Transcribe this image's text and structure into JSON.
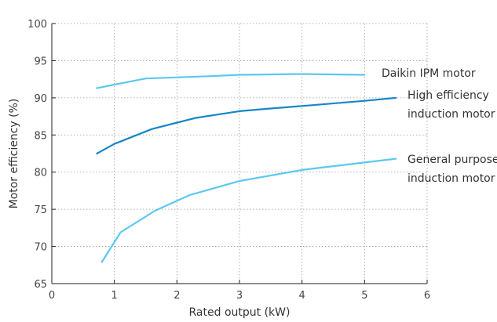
{
  "chart_data": {
    "type": "line",
    "title": "",
    "xlabel": "Rated output (kW)",
    "ylabel": "Motor efficiency (%)",
    "xlim": [
      0,
      6
    ],
    "ylim": [
      65,
      100
    ],
    "x_ticks": [
      "0",
      "1",
      "2",
      "3",
      "4",
      "5",
      "6"
    ],
    "y_ticks": [
      "65",
      "70",
      "75",
      "80",
      "85",
      "90",
      "95",
      "100"
    ],
    "grid": "dotted",
    "legend": "inline labels at line ends",
    "series": [
      {
        "name": "Daikin IPM motor",
        "color": "#5bc8ee",
        "x": [
          0.72,
          1.5,
          2.5,
          3.0,
          4.0,
          5.0
        ],
        "y": [
          91.3,
          92.6,
          92.9,
          93.1,
          93.2,
          93.1
        ]
      },
      {
        "name": "High efficiency induction motor",
        "color": "#1886c8",
        "x": [
          0.72,
          1.0,
          1.6,
          2.3,
          3.0,
          3.4,
          4.0,
          5.0,
          5.5
        ],
        "y": [
          82.5,
          83.8,
          85.8,
          87.3,
          88.2,
          88.5,
          88.9,
          89.6,
          90.0
        ]
      },
      {
        "name": "General purpose induction motor",
        "color": "#5bc8ee",
        "x": [
          0.8,
          1.1,
          1.65,
          2.2,
          3.0,
          4.0,
          5.0,
          5.5
        ],
        "y": [
          67.9,
          71.9,
          74.8,
          76.9,
          78.8,
          80.3,
          81.3,
          81.8
        ]
      }
    ],
    "series_labels": [
      [
        "Daikin IPM motor"
      ],
      [
        "High efficiency",
        "induction motor"
      ],
      [
        "General purpose",
        "induction motor"
      ]
    ]
  }
}
